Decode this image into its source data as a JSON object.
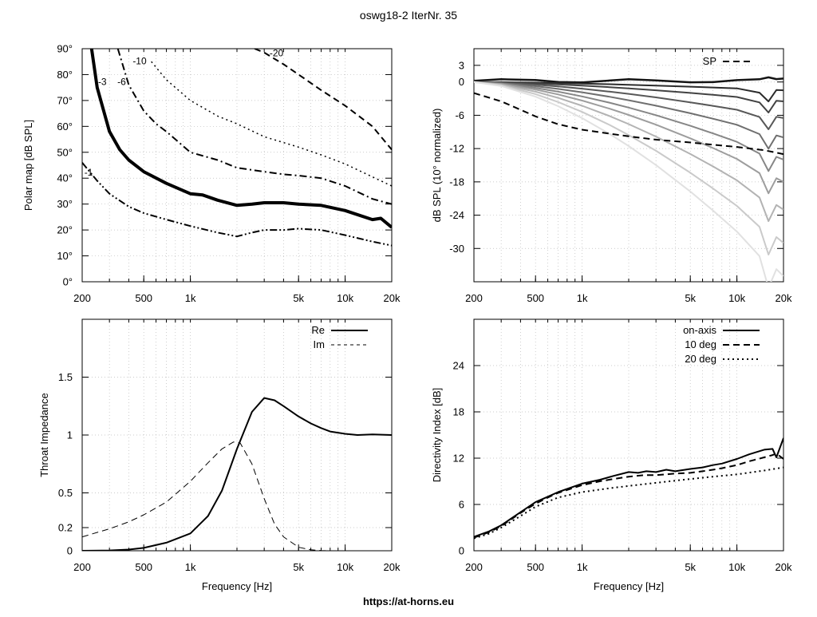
{
  "page": {
    "title": "oswg18-2 IterNr. 35",
    "footer": "https://at-horns.eu"
  },
  "chart_data": [
    {
      "id": "polar-map",
      "type": "line",
      "title": "",
      "xlabel": "",
      "ylabel": "Polar map [dB SPL]",
      "xscale": "log",
      "xlim": [
        200,
        20000
      ],
      "ylim": [
        0,
        90
      ],
      "xticks": [
        200,
        500,
        1000,
        5000,
        10000,
        20000
      ],
      "xtick_labels": [
        "200",
        "500",
        "1k",
        "5k",
        "10k",
        "20k"
      ],
      "yticks": [
        0,
        10,
        20,
        30,
        40,
        50,
        60,
        70,
        80,
        90
      ],
      "ytick_labels": [
        "0°",
        "10°",
        "20°",
        "30°",
        "40°",
        "50°",
        "60°",
        "70°",
        "80°",
        "90°"
      ],
      "grid": true,
      "contour_labels": [
        {
          "text": "-1",
          "x": 220,
          "y": 41
        },
        {
          "text": "-3",
          "x": 270,
          "y": 76
        },
        {
          "text": "-6",
          "x": 360,
          "y": 76
        },
        {
          "text": "-10",
          "x": 470,
          "y": 84
        },
        {
          "text": "-20",
          "x": 3600,
          "y": 87
        }
      ],
      "series": [
        {
          "level": "-1",
          "style": "dash-dot-dot",
          "width": 2,
          "x": [
            200,
            250,
            300,
            400,
            500,
            700,
            1000,
            1500,
            2000,
            2500,
            3000,
            4000,
            5000,
            7000,
            10000,
            15000,
            20000
          ],
          "y": [
            46,
            39,
            34,
            29,
            26.5,
            24,
            21.5,
            19,
            17.5,
            19,
            20,
            20,
            20.5,
            20,
            18,
            15.5,
            14
          ]
        },
        {
          "level": "-3",
          "style": "solid",
          "width": 4,
          "x": [
            230,
            250,
            300,
            350,
            400,
            500,
            700,
            1000,
            1200,
            1500,
            2000,
            2500,
            3000,
            4000,
            5000,
            7000,
            10000,
            15000,
            17000,
            20000
          ],
          "y": [
            90,
            75,
            58,
            51,
            47,
            42.5,
            38,
            34,
            33.5,
            31.5,
            29.5,
            30,
            30.5,
            30.5,
            30,
            29.5,
            27.5,
            24,
            24.5,
            21
          ]
        },
        {
          "level": "-6",
          "style": "dash-dot",
          "width": 2,
          "x": [
            340,
            400,
            500,
            600,
            700,
            1000,
            1500,
            2000,
            3000,
            4000,
            5000,
            7000,
            10000,
            15000,
            20000
          ],
          "y": [
            90,
            76,
            66,
            61,
            58,
            50,
            47,
            44,
            42.5,
            41.5,
            41,
            40,
            37,
            32,
            30
          ]
        },
        {
          "level": "-10",
          "style": "dotted",
          "width": 1.5,
          "x": [
            560,
            700,
            1000,
            1500,
            2000,
            3000,
            5000,
            7000,
            10000,
            15000,
            20000
          ],
          "y": [
            85,
            78,
            70,
            64,
            61,
            56,
            52,
            49,
            45.5,
            40.5,
            37
          ]
        },
        {
          "level": "-20",
          "style": "dashed",
          "width": 2,
          "x": [
            2600,
            3000,
            4000,
            5000,
            7000,
            10000,
            15000,
            20000
          ],
          "y": [
            90,
            88.5,
            84,
            80,
            74,
            68,
            60,
            51
          ]
        }
      ]
    },
    {
      "id": "normalized-spl",
      "type": "line",
      "title": "",
      "xlabel": "",
      "ylabel": "dB SPL (10° normalized)",
      "xscale": "log",
      "xlim": [
        200,
        20000
      ],
      "ylim": [
        -36,
        6
      ],
      "xticks": [
        200,
        500,
        1000,
        5000,
        10000,
        20000
      ],
      "xtick_labels": [
        "200",
        "500",
        "1k",
        "5k",
        "10k",
        "20k"
      ],
      "yticks": [
        3,
        0,
        -6,
        -12,
        -18,
        -24,
        -30
      ],
      "ytick_labels": [
        "3",
        "0",
        "-6",
        "-12",
        "-18",
        "-24",
        "-30"
      ],
      "grid": true,
      "legend": {
        "position": "top-right",
        "entries": [
          "SP"
        ]
      },
      "family": {
        "angles_deg": [
          0,
          10,
          20,
          30,
          40,
          50,
          60,
          70,
          80,
          90
        ],
        "x": [
          200,
          300,
          500,
          700,
          1000,
          1500,
          2000,
          3000,
          5000,
          7000,
          10000,
          14000,
          16000,
          18000,
          20000
        ],
        "end_values": [
          1,
          -1.5,
          -3.5,
          -6.5,
          -10,
          -14,
          -18,
          -23,
          -29,
          -35
        ]
      },
      "series": [
        {
          "name": "SP",
          "style": "dashed",
          "x": [
            200,
            300,
            400,
            500,
            700,
            1000,
            1500,
            2000,
            3000,
            5000,
            7000,
            10000,
            15000,
            20000
          ],
          "y": [
            -2,
            -3.5,
            -5,
            -6.2,
            -7.6,
            -8.6,
            -9.3,
            -9.8,
            -10.4,
            -10.9,
            -11.3,
            -11.7,
            -12.3,
            -13
          ]
        }
      ]
    },
    {
      "id": "throat-impedance",
      "type": "line",
      "title": "",
      "xlabel": "Frequency [Hz]",
      "ylabel": "Throat Impedance",
      "xscale": "log",
      "xlim": [
        200,
        20000
      ],
      "ylim": [
        0,
        2
      ],
      "xticks": [
        200,
        500,
        1000,
        5000,
        10000,
        20000
      ],
      "xtick_labels": [
        "200",
        "500",
        "1k",
        "5k",
        "10k",
        "20k"
      ],
      "yticks": [
        0,
        0.2,
        0.5,
        1,
        1.5
      ],
      "ytick_labels": [
        "0",
        "0.2",
        "0.5",
        "1",
        "1.5"
      ],
      "grid": true,
      "legend": {
        "position": "top-right",
        "entries": [
          "Re",
          "Im"
        ]
      },
      "series": [
        {
          "name": "Re",
          "style": "solid",
          "x": [
            200,
            300,
            400,
            500,
            700,
            1000,
            1300,
            1600,
            2000,
            2500,
            3000,
            3500,
            4000,
            5000,
            6000,
            7000,
            8000,
            10000,
            12000,
            15000,
            20000
          ],
          "y": [
            0,
            0.003,
            0.01,
            0.025,
            0.07,
            0.15,
            0.3,
            0.52,
            0.88,
            1.2,
            1.32,
            1.3,
            1.25,
            1.16,
            1.1,
            1.06,
            1.03,
            1.01,
            1.0,
            1.005,
            1.0
          ]
        },
        {
          "name": "Im",
          "style": "dashed",
          "x": [
            200,
            300,
            400,
            500,
            700,
            1000,
            1300,
            1600,
            1900,
            2100,
            2500,
            3000,
            3500,
            4000,
            5000,
            6000,
            7000,
            8000
          ],
          "y": [
            0.12,
            0.19,
            0.25,
            0.31,
            0.42,
            0.6,
            0.76,
            0.88,
            0.94,
            0.93,
            0.75,
            0.45,
            0.23,
            0.12,
            0.03,
            0.008,
            0.002,
            0
          ]
        }
      ]
    },
    {
      "id": "directivity-index",
      "type": "line",
      "title": "",
      "xlabel": "Frequency [Hz]",
      "ylabel": "Directivity Index [dB]",
      "xscale": "log",
      "xlim": [
        200,
        20000
      ],
      "ylim": [
        0,
        30
      ],
      "xticks": [
        200,
        500,
        1000,
        5000,
        10000,
        20000
      ],
      "xtick_labels": [
        "200",
        "500",
        "1k",
        "5k",
        "10k",
        "20k"
      ],
      "yticks": [
        0,
        6,
        12,
        18,
        24
      ],
      "ytick_labels": [
        "0",
        "6",
        "12",
        "18",
        "24"
      ],
      "grid": true,
      "legend": {
        "position": "top-right",
        "entries": [
          "on-axis",
          "10 deg",
          "20 deg"
        ]
      },
      "series": [
        {
          "name": "on-axis",
          "style": "solid",
          "x": [
            200,
            250,
            300,
            400,
            500,
            600,
            700,
            1000,
            1300,
            1600,
            2000,
            2300,
            2600,
            3000,
            3500,
            4000,
            5000,
            6000,
            7000,
            8000,
            10000,
            12000,
            15000,
            17000,
            18000,
            20000
          ],
          "y": [
            1.8,
            2.5,
            3.3,
            5,
            6.3,
            7,
            7.6,
            8.7,
            9.2,
            9.7,
            10.2,
            10.1,
            10.3,
            10.2,
            10.5,
            10.3,
            10.6,
            10.8,
            11.1,
            11.3,
            11.9,
            12.5,
            13.1,
            13.2,
            12.1,
            14.6
          ]
        },
        {
          "name": "10 deg",
          "style": "dashed",
          "x": [
            200,
            250,
            300,
            400,
            500,
            600,
            700,
            1000,
            1300,
            1600,
            2000,
            2500,
            3000,
            4000,
            5000,
            6000,
            7000,
            8000,
            10000,
            12000,
            15000,
            17000,
            18000,
            20000
          ],
          "y": [
            1.7,
            2.4,
            3.2,
            4.9,
            6.1,
            6.9,
            7.5,
            8.5,
            9.0,
            9.3,
            9.6,
            9.8,
            9.8,
            10.0,
            10.1,
            10.3,
            10.5,
            10.7,
            11.1,
            11.6,
            12.1,
            12.4,
            12.6,
            11.9
          ]
        },
        {
          "name": "20 deg",
          "style": "dotted",
          "x": [
            200,
            250,
            300,
            400,
            500,
            700,
            1000,
            1500,
            2000,
            3000,
            5000,
            7000,
            10000,
            15000,
            20000
          ],
          "y": [
            1.6,
            2.2,
            3.0,
            4.5,
            5.7,
            6.9,
            7.6,
            8.1,
            8.4,
            8.8,
            9.3,
            9.6,
            9.9,
            10.4,
            10.8
          ]
        }
      ]
    }
  ]
}
